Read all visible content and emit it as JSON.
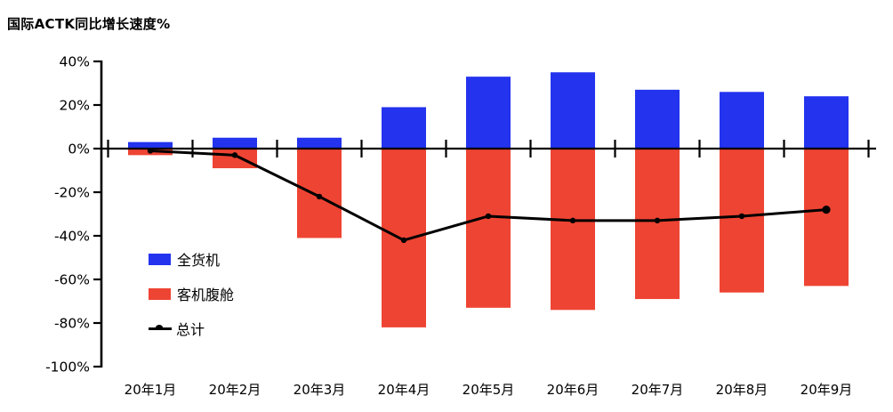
{
  "title": "国际ACTK同比增长速度%",
  "chart_data": {
    "type": "bar+line",
    "title": "国际ACTK同比增长速度%",
    "categories": [
      "20年1月",
      "20年2月",
      "20年3月",
      "20年4月",
      "20年5月",
      "20年6月",
      "20年7月",
      "20年8月",
      "20年9月"
    ],
    "series": [
      {
        "name": "全货机",
        "type": "bar",
        "color": "#2333ee",
        "values": [
          3,
          5,
          5,
          19,
          33,
          35,
          27,
          26,
          24
        ]
      },
      {
        "name": "客机腹舱",
        "type": "bar",
        "color": "#ee4433",
        "values": [
          -3,
          -9,
          -41,
          -82,
          -73,
          -74,
          -69,
          -66,
          -63
        ]
      },
      {
        "name": "总计",
        "type": "line",
        "color": "#000000",
        "values": [
          -1,
          -3,
          -22,
          -42,
          -31,
          -33,
          -33,
          -31,
          -28
        ]
      }
    ],
    "ylim": [
      -100,
      40
    ],
    "ytick_step": 20,
    "ytick_labels": [
      "40%",
      "20%",
      "0%",
      "-20%",
      "-40%",
      "-60%",
      "-80%",
      "-100%"
    ],
    "xlabel": "",
    "ylabel": "国际ACTK同比增长速度%",
    "grid": false,
    "legend_position": "inside-left",
    "axis_color": "#000000",
    "background_color": "#ffffff"
  }
}
